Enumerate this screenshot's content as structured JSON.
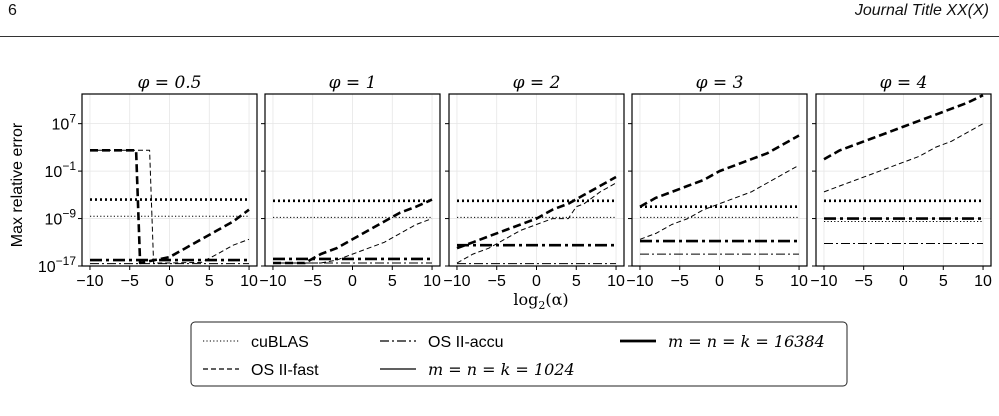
{
  "header": {
    "page_number": "6",
    "journal_title": "Journal Title XX(X)"
  },
  "chart_data": {
    "type": "line",
    "ylabel": "Max relative error",
    "xlabel": "log2(α)",
    "yscale": "log",
    "ylim_log10": [
      -17,
      12
    ],
    "xlim": [
      -11,
      11
    ],
    "x_ticks": [
      "−10",
      "−5",
      "0",
      "5",
      "10"
    ],
    "y_ticks": [
      "10^7",
      "10^−1",
      "10^−9",
      "10^−17"
    ],
    "y_tick_exponents": [
      7,
      -1,
      -9,
      -17
    ],
    "grid": true,
    "legend_position": "bottom-center",
    "legend": {
      "methods": [
        {
          "key": "cublas",
          "label": "cuBLAS",
          "dash": "dotted"
        },
        {
          "key": "fast",
          "label": "OS II-fast",
          "dash": "dashed"
        },
        {
          "key": "accu",
          "label": "OS II-accu",
          "dash": "dashdot"
        }
      ],
      "sizes": [
        {
          "key": "small",
          "label": "m = n = k = 1024",
          "weight": "thin"
        },
        {
          "key": "large",
          "label": "m = n = k = 16384",
          "weight": "thick"
        }
      ]
    },
    "panels": [
      {
        "title": "φ = 0.5",
        "series": [
          {
            "method": "cublas",
            "size": "small",
            "x": [
              -10,
              10
            ],
            "y_log10": [
              -8.6,
              -8.6
            ]
          },
          {
            "method": "cublas",
            "size": "large",
            "x": [
              -10,
              10
            ],
            "y_log10": [
              -5.8,
              -5.8
            ]
          },
          {
            "method": "fast",
            "size": "small",
            "x": [
              -10,
              -2.5,
              -2,
              0,
              4,
              6,
              8,
              10
            ],
            "y_log10": [
              2.5,
              2.5,
              -16.5,
              -16.5,
              -16.4,
              -15,
              -13.5,
              -12.5
            ]
          },
          {
            "method": "fast",
            "size": "large",
            "x": [
              -10,
              -4.2,
              -3.7,
              0,
              2,
              4,
              6,
              8,
              10
            ],
            "y_log10": [
              2.5,
              2.5,
              -16.5,
              -15.5,
              -14,
              -12.5,
              -11,
              -9.5,
              -7.5
            ]
          },
          {
            "method": "accu",
            "size": "small",
            "x": [
              -10,
              10
            ],
            "y_log10": [
              -16.6,
              -16.6
            ]
          },
          {
            "method": "accu",
            "size": "large",
            "x": [
              -10,
              10
            ],
            "y_log10": [
              -16.0,
              -16.0
            ]
          }
        ]
      },
      {
        "title": "φ = 1",
        "series": [
          {
            "method": "cublas",
            "size": "small",
            "x": [
              -10,
              10
            ],
            "y_log10": [
              -8.8,
              -8.8
            ]
          },
          {
            "method": "cublas",
            "size": "large",
            "x": [
              -10,
              10
            ],
            "y_log10": [
              -6.0,
              -6.0
            ]
          },
          {
            "method": "fast",
            "size": "small",
            "x": [
              -10,
              -4,
              -2,
              0,
              2,
              4,
              6,
              8,
              10
            ],
            "y_log10": [
              -16.5,
              -16.5,
              -16.0,
              -15.0,
              -14.0,
              -13.0,
              -11.5,
              -10.0,
              -9.0
            ]
          },
          {
            "method": "fast",
            "size": "large",
            "x": [
              -10,
              -6,
              -4,
              -2,
              0,
              2,
              4,
              6,
              8,
              10
            ],
            "y_log10": [
              -16.5,
              -16.5,
              -15.0,
              -14.0,
              -12.5,
              -11.0,
              -9.5,
              -8.0,
              -7.0,
              -5.8
            ]
          },
          {
            "method": "accu",
            "size": "small",
            "x": [
              -10,
              10
            ],
            "y_log10": [
              -16.5,
              -16.5
            ]
          },
          {
            "method": "accu",
            "size": "large",
            "x": [
              -10,
              10
            ],
            "y_log10": [
              -15.8,
              -15.8
            ]
          }
        ]
      },
      {
        "title": "φ = 2",
        "series": [
          {
            "method": "cublas",
            "size": "small",
            "x": [
              -10,
              10
            ],
            "y_log10": [
              -8.8,
              -8.8
            ]
          },
          {
            "method": "cublas",
            "size": "large",
            "x": [
              -10,
              10
            ],
            "y_log10": [
              -6.0,
              -6.0
            ]
          },
          {
            "method": "fast",
            "size": "small",
            "x": [
              -10,
              -8,
              -6,
              -4,
              -2,
              0,
              2,
              4,
              5,
              6,
              8,
              10
            ],
            "y_log10": [
              -16.5,
              -15.0,
              -14.0,
              -12.5,
              -11.0,
              -10.0,
              -9.0,
              -9.0,
              -7.0,
              -6.5,
              -4.5,
              -3.0
            ]
          },
          {
            "method": "fast",
            "size": "large",
            "x": [
              -10,
              -8,
              -6,
              -4,
              -2,
              0,
              2,
              4,
              6,
              8,
              10
            ],
            "y_log10": [
              -14.0,
              -13.0,
              -12.0,
              -11.0,
              -10.0,
              -9.0,
              -7.5,
              -6.5,
              -5.0,
              -3.5,
              -2.0
            ]
          },
          {
            "method": "accu",
            "size": "small",
            "x": [
              -10,
              10
            ],
            "y_log10": [
              -16.6,
              -16.6
            ]
          },
          {
            "method": "accu",
            "size": "large",
            "x": [
              -10,
              10
            ],
            "y_log10": [
              -13.5,
              -13.5
            ]
          }
        ]
      },
      {
        "title": "φ = 3",
        "series": [
          {
            "method": "cublas",
            "size": "small",
            "x": [
              -10,
              10
            ],
            "y_log10": [
              -8.8,
              -8.8
            ]
          },
          {
            "method": "cublas",
            "size": "large",
            "x": [
              -10,
              10
            ],
            "y_log10": [
              -7.0,
              -7.0
            ]
          },
          {
            "method": "fast",
            "size": "small",
            "x": [
              -10,
              -8,
              -6,
              -4,
              -2,
              0,
              2,
              4,
              6,
              8,
              10
            ],
            "y_log10": [
              -12.5,
              -11.5,
              -10.0,
              -9.0,
              -7.5,
              -6.5,
              -5.5,
              -4.5,
              -3.0,
              -1.5,
              0.0
            ]
          },
          {
            "method": "fast",
            "size": "large",
            "x": [
              -10,
              -8,
              -6,
              -4,
              -2,
              0,
              2,
              4,
              6,
              8,
              10
            ],
            "y_log10": [
              -7.0,
              -5.5,
              -4.5,
              -3.5,
              -2.5,
              -1.0,
              0.0,
              1.0,
              2.0,
              3.5,
              5.0
            ]
          },
          {
            "method": "accu",
            "size": "small",
            "x": [
              -10,
              10
            ],
            "y_log10": [
              -15.0,
              -15.0
            ]
          },
          {
            "method": "accu",
            "size": "large",
            "x": [
              -10,
              10
            ],
            "y_log10": [
              -12.8,
              -12.8
            ]
          }
        ]
      },
      {
        "title": "φ = 4",
        "series": [
          {
            "method": "cublas",
            "size": "small",
            "x": [
              -10,
              10
            ],
            "y_log10": [
              -9.5,
              -9.5
            ]
          },
          {
            "method": "cublas",
            "size": "large",
            "x": [
              -10,
              10
            ],
            "y_log10": [
              -6.0,
              -6.0
            ]
          },
          {
            "method": "fast",
            "size": "small",
            "x": [
              -10,
              -8,
              -6,
              -4,
              -2,
              0,
              2,
              4,
              6,
              8,
              10
            ],
            "y_log10": [
              -4.5,
              -3.5,
              -2.5,
              -1.5,
              -0.5,
              0.5,
              1.5,
              3.0,
              4.0,
              5.5,
              7.0
            ]
          },
          {
            "method": "fast",
            "size": "large",
            "x": [
              -10,
              -8,
              -6,
              -4,
              -2,
              0,
              2,
              4,
              6,
              8,
              10
            ],
            "y_log10": [
              1.0,
              2.5,
              3.5,
              4.5,
              5.5,
              6.5,
              7.5,
              8.5,
              9.5,
              10.5,
              11.8
            ]
          },
          {
            "method": "accu",
            "size": "small",
            "x": [
              -10,
              10
            ],
            "y_log10": [
              -13.2,
              -13.2
            ]
          },
          {
            "method": "accu",
            "size": "large",
            "x": [
              -10,
              10
            ],
            "y_log10": [
              -9.0,
              -9.0
            ]
          }
        ]
      }
    ]
  }
}
